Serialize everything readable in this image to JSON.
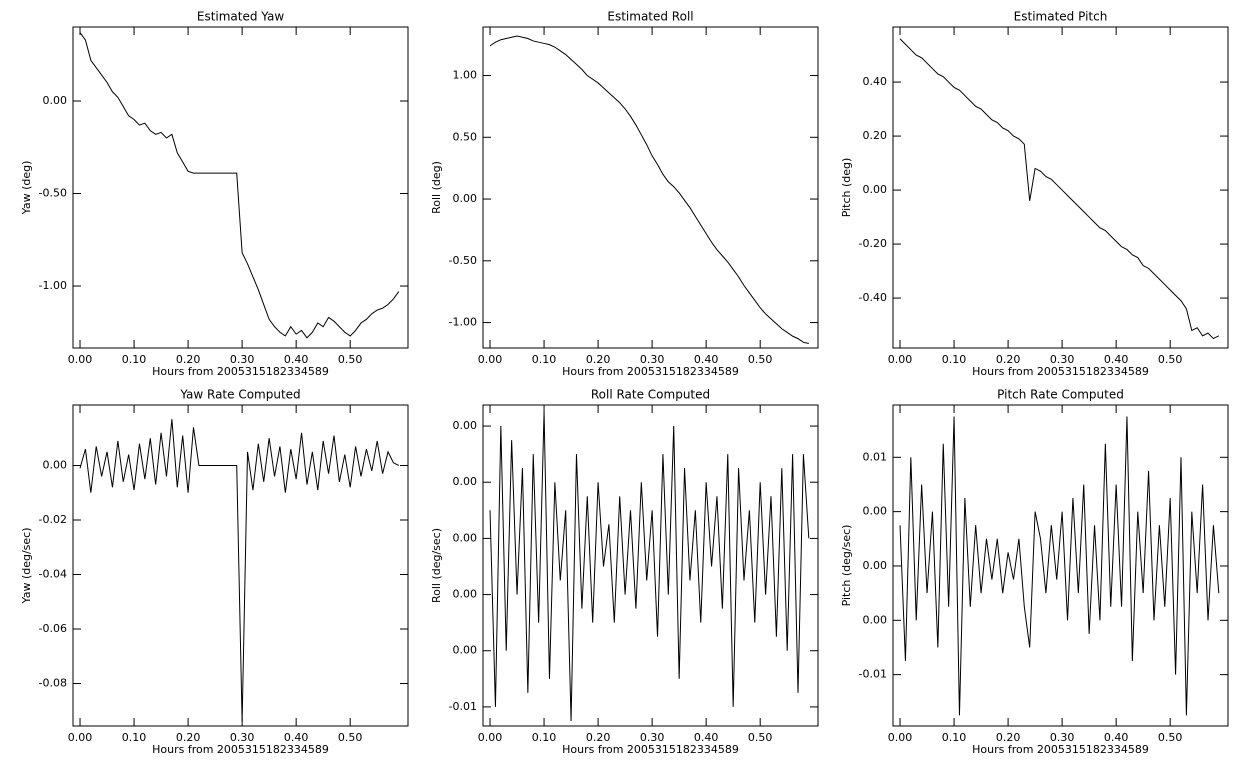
{
  "chart_data": [
    {
      "type": "line",
      "title": "Estimated Yaw",
      "x_label": "Hours from 2005315182334589",
      "y_label": "Yaw (deg)",
      "color": "#000000",
      "x": [
        0,
        0.01,
        0.02,
        0.03,
        0.04,
        0.05,
        0.06,
        0.07,
        0.08,
        0.09,
        0.1,
        0.11,
        0.12,
        0.13,
        0.14,
        0.15,
        0.16,
        0.17,
        0.18,
        0.19,
        0.2,
        0.21,
        0.22,
        0.23,
        0.24,
        0.25,
        0.26,
        0.27,
        0.28,
        0.29,
        0.3,
        0.31,
        0.32,
        0.33,
        0.34,
        0.35,
        0.36,
        0.37,
        0.38,
        0.39,
        0.4,
        0.41,
        0.42,
        0.43,
        0.44,
        0.45,
        0.46,
        0.47,
        0.48,
        0.49,
        0.5,
        0.51,
        0.52,
        0.53,
        0.54,
        0.55,
        0.56,
        0.57,
        0.58,
        0.59
      ],
      "values": [
        0.37,
        0.33,
        0.22,
        0.18,
        0.14,
        0.1,
        0.05,
        0.02,
        -0.03,
        -0.08,
        -0.1,
        -0.13,
        -0.12,
        -0.16,
        -0.18,
        -0.17,
        -0.2,
        -0.18,
        -0.28,
        -0.33,
        -0.38,
        -0.39,
        -0.39,
        -0.39,
        -0.39,
        -0.39,
        -0.39,
        -0.39,
        -0.39,
        -0.39,
        -0.82,
        -0.88,
        -0.95,
        -1.02,
        -1.1,
        -1.18,
        -1.22,
        -1.25,
        -1.27,
        -1.22,
        -1.26,
        -1.24,
        -1.28,
        -1.25,
        -1.2,
        -1.22,
        -1.17,
        -1.19,
        -1.22,
        -1.25,
        -1.27,
        -1.24,
        -1.2,
        -1.18,
        -1.15,
        -1.13,
        -1.12,
        -1.1,
        -1.07,
        -1.03
      ],
      "xlim": [
        -0.013,
        0.607
      ],
      "ylim": [
        -1.335,
        0.4
      ],
      "xticks": [
        {
          "value": 0,
          "label": "0.00"
        },
        {
          "value": 0.1,
          "label": "0.10"
        },
        {
          "value": 0.2,
          "label": "0.20"
        },
        {
          "value": 0.3,
          "label": "0.30"
        },
        {
          "value": 0.4,
          "label": "0.40"
        },
        {
          "value": 0.5,
          "label": "0.50"
        }
      ],
      "yticks": [
        {
          "value": 0,
          "label": "0.00"
        },
        {
          "value": -0.5,
          "label": "-0.50"
        },
        {
          "value": -1,
          "label": "-1.00"
        }
      ]
    },
    {
      "type": "line",
      "title": "Estimated Roll",
      "x_label": "Hours from 2005315182334589",
      "y_label": "Roll (deg)",
      "color": "#000000",
      "x": [
        0,
        0.01,
        0.02,
        0.03,
        0.04,
        0.05,
        0.06,
        0.07,
        0.08,
        0.09,
        0.1,
        0.11,
        0.12,
        0.13,
        0.14,
        0.15,
        0.16,
        0.17,
        0.18,
        0.19,
        0.2,
        0.21,
        0.22,
        0.23,
        0.24,
        0.25,
        0.26,
        0.27,
        0.28,
        0.29,
        0.3,
        0.31,
        0.32,
        0.33,
        0.34,
        0.35,
        0.36,
        0.37,
        0.38,
        0.39,
        0.4,
        0.41,
        0.42,
        0.43,
        0.44,
        0.45,
        0.46,
        0.47,
        0.48,
        0.49,
        0.5,
        0.51,
        0.52,
        0.53,
        0.54,
        0.55,
        0.56,
        0.57,
        0.58,
        0.59
      ],
      "values": [
        1.24,
        1.27,
        1.29,
        1.3,
        1.31,
        1.32,
        1.31,
        1.3,
        1.28,
        1.27,
        1.26,
        1.25,
        1.23,
        1.2,
        1.17,
        1.13,
        1.09,
        1.05,
        1.0,
        0.97,
        0.94,
        0.9,
        0.86,
        0.82,
        0.78,
        0.73,
        0.67,
        0.6,
        0.52,
        0.44,
        0.35,
        0.28,
        0.2,
        0.14,
        0.1,
        0.05,
        -0.01,
        -0.07,
        -0.14,
        -0.21,
        -0.28,
        -0.35,
        -0.41,
        -0.46,
        -0.51,
        -0.57,
        -0.63,
        -0.7,
        -0.76,
        -0.82,
        -0.88,
        -0.93,
        -0.97,
        -1.01,
        -1.05,
        -1.08,
        -1.11,
        -1.13,
        -1.16,
        -1.17
      ],
      "xlim": [
        -0.013,
        0.607
      ],
      "ylim": [
        -1.206,
        1.393
      ],
      "xticks": [
        {
          "value": 0,
          "label": "0.00"
        },
        {
          "value": 0.1,
          "label": "0.10"
        },
        {
          "value": 0.2,
          "label": "0.20"
        },
        {
          "value": 0.3,
          "label": "0.30"
        },
        {
          "value": 0.4,
          "label": "0.40"
        },
        {
          "value": 0.5,
          "label": "0.50"
        }
      ],
      "yticks": [
        {
          "value": 1,
          "label": "1.00"
        },
        {
          "value": 0.5,
          "label": "0.50"
        },
        {
          "value": 0,
          "label": "0.00"
        },
        {
          "value": -0.5,
          "label": "-0.50"
        },
        {
          "value": -1,
          "label": "-1.00"
        }
      ]
    },
    {
      "type": "line",
      "title": "Estimated Pitch",
      "x_label": "Hours from 2005315182334589",
      "y_label": "Pitch (deg)",
      "color": "#000000",
      "x": [
        0,
        0.01,
        0.02,
        0.03,
        0.04,
        0.05,
        0.06,
        0.07,
        0.08,
        0.09,
        0.1,
        0.11,
        0.12,
        0.13,
        0.14,
        0.15,
        0.16,
        0.17,
        0.18,
        0.19,
        0.2,
        0.21,
        0.22,
        0.23,
        0.24,
        0.25,
        0.26,
        0.27,
        0.28,
        0.29,
        0.3,
        0.31,
        0.32,
        0.33,
        0.34,
        0.35,
        0.36,
        0.37,
        0.38,
        0.39,
        0.4,
        0.41,
        0.42,
        0.43,
        0.44,
        0.45,
        0.46,
        0.47,
        0.48,
        0.49,
        0.5,
        0.51,
        0.52,
        0.53,
        0.54,
        0.55,
        0.56,
        0.57,
        0.58,
        0.59
      ],
      "values": [
        0.56,
        0.54,
        0.52,
        0.5,
        0.49,
        0.47,
        0.45,
        0.43,
        0.42,
        0.4,
        0.38,
        0.37,
        0.35,
        0.33,
        0.31,
        0.3,
        0.28,
        0.26,
        0.25,
        0.23,
        0.22,
        0.2,
        0.19,
        0.17,
        -0.04,
        0.08,
        0.07,
        0.05,
        0.04,
        0.02,
        0.0,
        -0.02,
        -0.04,
        -0.06,
        -0.08,
        -0.1,
        -0.12,
        -0.14,
        -0.15,
        -0.17,
        -0.19,
        -0.21,
        -0.22,
        -0.24,
        -0.25,
        -0.28,
        -0.29,
        -0.31,
        -0.33,
        -0.35,
        -0.37,
        -0.39,
        -0.41,
        -0.44,
        -0.52,
        -0.51,
        -0.54,
        -0.53,
        -0.55,
        -0.54
      ],
      "xlim": [
        -0.013,
        0.607
      ],
      "ylim": [
        -0.585,
        0.604
      ],
      "xticks": [
        {
          "value": 0,
          "label": "0.00"
        },
        {
          "value": 0.1,
          "label": "0.10"
        },
        {
          "value": 0.2,
          "label": "0.20"
        },
        {
          "value": 0.3,
          "label": "0.30"
        },
        {
          "value": 0.4,
          "label": "0.40"
        },
        {
          "value": 0.5,
          "label": "0.50"
        }
      ],
      "yticks": [
        {
          "value": 0.4,
          "label": "0.40"
        },
        {
          "value": 0.2,
          "label": "0.20"
        },
        {
          "value": 0,
          "label": "0.00"
        },
        {
          "value": -0.2,
          "label": "-0.20"
        },
        {
          "value": -0.4,
          "label": "-0.40"
        }
      ]
    },
    {
      "type": "line",
      "title": "Yaw Rate Computed",
      "x_label": "Hours from 2005315182334589",
      "y_label": "Yaw (deg/sec)",
      "color": "#000000",
      "x": [
        0,
        0.01,
        0.02,
        0.03,
        0.04,
        0.05,
        0.06,
        0.07,
        0.08,
        0.09,
        0.1,
        0.11,
        0.12,
        0.13,
        0.14,
        0.15,
        0.16,
        0.17,
        0.18,
        0.19,
        0.2,
        0.21,
        0.22,
        0.23,
        0.24,
        0.25,
        0.26,
        0.27,
        0.28,
        0.29,
        0.3,
        0.31,
        0.32,
        0.33,
        0.34,
        0.35,
        0.36,
        0.37,
        0.38,
        0.39,
        0.4,
        0.41,
        0.42,
        0.43,
        0.44,
        0.45,
        0.46,
        0.47,
        0.48,
        0.49,
        0.5,
        0.51,
        0.52,
        0.53,
        0.54,
        0.55,
        0.56,
        0.57,
        0.58,
        0.59
      ],
      "values": [
        -0.001,
        0.006,
        -0.01,
        0.007,
        -0.004,
        0.005,
        -0.008,
        0.009,
        -0.006,
        0.004,
        -0.009,
        0.008,
        -0.005,
        0.01,
        -0.007,
        0.012,
        -0.004,
        0.017,
        -0.008,
        0.011,
        -0.01,
        0.014,
        0,
        0,
        0,
        0,
        0,
        0,
        0,
        0,
        -0.094,
        0.005,
        -0.009,
        0.008,
        -0.006,
        0.01,
        -0.004,
        0.007,
        -0.01,
        0.006,
        -0.005,
        0.012,
        -0.007,
        0.005,
        -0.009,
        0.009,
        -0.003,
        0.011,
        -0.006,
        0.004,
        -0.008,
        0.007,
        -0.004,
        0.006,
        -0.002,
        0.009,
        -0.003,
        0.005,
        0.001,
        0
      ],
      "xlim": [
        -0.013,
        0.607
      ],
      "ylim": [
        -0.0956,
        0.0222
      ],
      "xticks": [
        {
          "value": 0,
          "label": "0.00"
        },
        {
          "value": 0.1,
          "label": "0.10"
        },
        {
          "value": 0.2,
          "label": "0.20"
        },
        {
          "value": 0.3,
          "label": "0.30"
        },
        {
          "value": 0.4,
          "label": "0.40"
        },
        {
          "value": 0.5,
          "label": "0.50"
        }
      ],
      "yticks": [
        {
          "value": 0,
          "label": "0.00"
        },
        {
          "value": -0.02,
          "label": "-0.02"
        },
        {
          "value": -0.04,
          "label": "-0.04"
        },
        {
          "value": -0.06,
          "label": "-0.06"
        },
        {
          "value": -0.08,
          "label": "-0.08"
        }
      ]
    },
    {
      "type": "line",
      "title": "Roll Rate Computed",
      "x_label": "Hours from 2005315182334589",
      "y_label": "Roll (deg/sec)",
      "color": "#000000",
      "x": [
        0,
        0.01,
        0.02,
        0.03,
        0.04,
        0.05,
        0.06,
        0.07,
        0.08,
        0.09,
        0.1,
        0.11,
        0.12,
        0.13,
        0.14,
        0.15,
        0.16,
        0.17,
        0.18,
        0.19,
        0.2,
        0.21,
        0.22,
        0.23,
        0.24,
        0.25,
        0.26,
        0.27,
        0.28,
        0.29,
        0.3,
        0.31,
        0.32,
        0.33,
        0.34,
        0.35,
        0.36,
        0.37,
        0.38,
        0.39,
        0.4,
        0.41,
        0.42,
        0.43,
        0.44,
        0.45,
        0.46,
        0.47,
        0.48,
        0.49,
        0.5,
        0.51,
        0.52,
        0.53,
        0.54,
        0.55,
        0.56,
        0.57,
        0.58,
        0.59
      ],
      "values": [
        0.001,
        -0.006,
        0.004,
        -0.004,
        0.0035,
        -0.002,
        0.0025,
        -0.0055,
        0.003,
        -0.003,
        0.0045,
        -0.005,
        0.002,
        -0.0015,
        0.001,
        -0.0065,
        0.003,
        -0.0025,
        0.0015,
        -0.003,
        0.002,
        -0.001,
        0.0005,
        -0.003,
        0.0015,
        -0.002,
        0.001,
        -0.0025,
        0.002,
        -0.0015,
        0.001,
        -0.0035,
        0.003,
        -0.002,
        0.004,
        -0.005,
        0.0025,
        -0.0015,
        0.001,
        -0.003,
        0.002,
        -0.001,
        0.0015,
        -0.0025,
        0.003,
        -0.006,
        0.0025,
        -0.0015,
        0.001,
        -0.003,
        0.002,
        -0.002,
        0.0015,
        -0.0035,
        0.0025,
        -0.004,
        0.003,
        -0.0055,
        0.003,
        0
      ],
      "xlim": [
        -0.013,
        0.607
      ],
      "ylim": [
        -0.00668,
        0.00475
      ],
      "xticks": [
        {
          "value": 0,
          "label": "0.00"
        },
        {
          "value": 0.1,
          "label": "0.10"
        },
        {
          "value": 0.2,
          "label": "0.20"
        },
        {
          "value": 0.3,
          "label": "0.30"
        },
        {
          "value": 0.4,
          "label": "0.40"
        },
        {
          "value": 0.5,
          "label": "0.50"
        }
      ],
      "yticks": [
        {
          "value": 0.004,
          "label": "0.00"
        },
        {
          "value": 0.002,
          "label": "0.00"
        },
        {
          "value": 0,
          "label": "0.00"
        },
        {
          "value": -0.002,
          "label": "0.00"
        },
        {
          "value": -0.004,
          "label": "0.00"
        },
        {
          "value": -0.006,
          "label": "-0.01"
        }
      ]
    },
    {
      "type": "line",
      "title": "Pitch Rate Computed",
      "x_label": "Hours from 2005315182334589",
      "y_label": "Pitch (deg/sec)",
      "color": "#000000",
      "x": [
        0,
        0.01,
        0.02,
        0.03,
        0.04,
        0.05,
        0.06,
        0.07,
        0.08,
        0.09,
        0.1,
        0.11,
        0.12,
        0.13,
        0.14,
        0.15,
        0.16,
        0.17,
        0.18,
        0.19,
        0.2,
        0.21,
        0.22,
        0.23,
        0.24,
        0.25,
        0.26,
        0.27,
        0.28,
        0.29,
        0.3,
        0.31,
        0.32,
        0.33,
        0.34,
        0.35,
        0.36,
        0.37,
        0.38,
        0.39,
        0.4,
        0.41,
        0.42,
        0.43,
        0.44,
        0.45,
        0.46,
        0.47,
        0.48,
        0.49,
        0.5,
        0.51,
        0.52,
        0.53,
        0.54,
        0.55,
        0.56,
        0.57,
        0.58,
        0.59
      ],
      "values": [
        0.003,
        -0.007,
        0.008,
        -0.004,
        0.006,
        -0.002,
        0.004,
        -0.006,
        0.009,
        -0.003,
        0.011,
        -0.011,
        0.005,
        -0.003,
        0.003,
        -0.002,
        0.002,
        -0.001,
        0.002,
        -0.002,
        0.001,
        -0.001,
        0.002,
        -0.003,
        -0.006,
        0.004,
        0.002,
        -0.002,
        0.003,
        -0.001,
        0.004,
        -0.004,
        0.005,
        -0.002,
        0.006,
        -0.005,
        0.003,
        -0.004,
        0.009,
        -0.003,
        0.006,
        -0.003,
        0.011,
        -0.007,
        0.004,
        -0.002,
        0.007,
        -0.004,
        0.003,
        -0.003,
        0.005,
        -0.008,
        0.008,
        -0.011,
        0.004,
        -0.002,
        0.006,
        -0.004,
        0.003,
        -0.002
      ],
      "xlim": [
        -0.013,
        0.607
      ],
      "ylim": [
        -0.01178,
        0.01185
      ],
      "xticks": [
        {
          "value": 0,
          "label": "0.00"
        },
        {
          "value": 0.1,
          "label": "0.10"
        },
        {
          "value": 0.2,
          "label": "0.20"
        },
        {
          "value": 0.3,
          "label": "0.30"
        },
        {
          "value": 0.4,
          "label": "0.40"
        },
        {
          "value": 0.5,
          "label": "0.50"
        }
      ],
      "yticks": [
        {
          "value": 0.008,
          "label": "0.01"
        },
        {
          "value": 0.004,
          "label": "0.00"
        },
        {
          "value": 0,
          "label": "0.00"
        },
        {
          "value": -0.004,
          "label": "0.00"
        },
        {
          "value": -0.008,
          "label": "-0.01"
        }
      ]
    }
  ]
}
